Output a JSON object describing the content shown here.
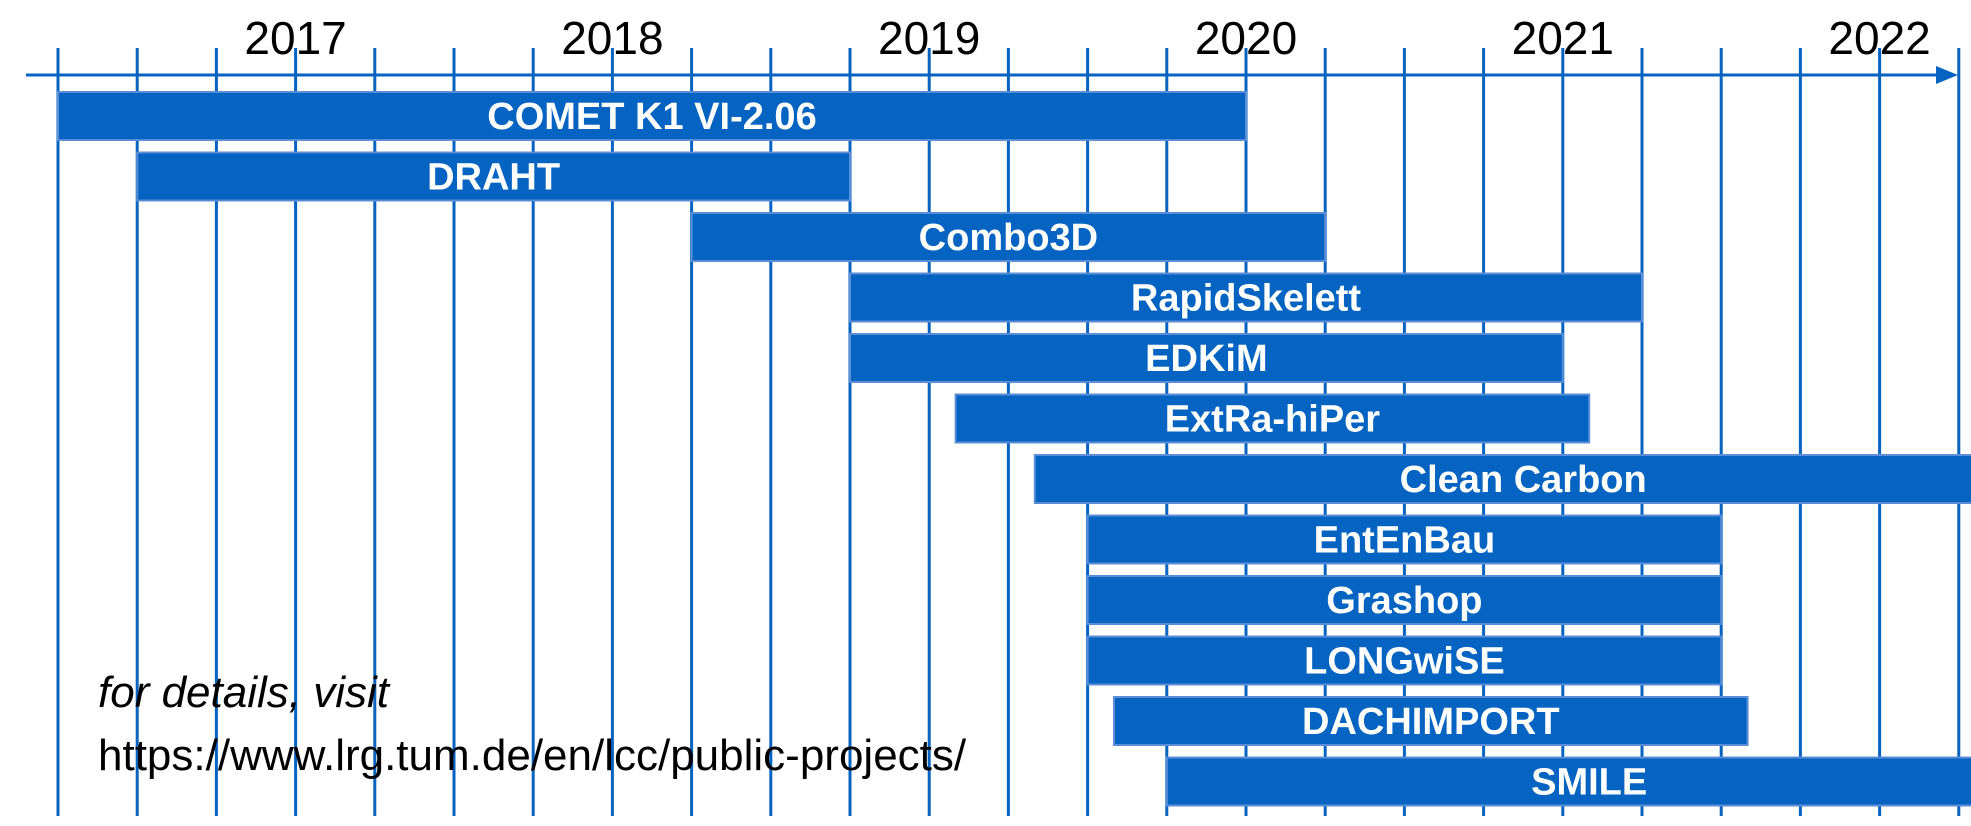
{
  "chart_data": {
    "type": "bar",
    "orientation": "horizontal-timeline",
    "axis": {
      "unit": "quarter",
      "year_labels": [
        "2017",
        "2018",
        "2019",
        "2020",
        "2021",
        "2022"
      ],
      "start": "2016-10",
      "end": "2023-01",
      "grid": true
    },
    "colors": {
      "bar": "#0563C1",
      "bar_edge": "#5B8ED6",
      "axis": "#0563C1"
    },
    "bars": [
      {
        "label": "COMET K1 VI-2.06",
        "start": "2016-10",
        "end": "2020-07"
      },
      {
        "label": "DRAHT",
        "start": "2017-01",
        "end": "2019-04"
      },
      {
        "label": "Combo3D",
        "start": "2018-10",
        "end": "2020-10"
      },
      {
        "label": "RapidSkelett",
        "start": "2019-04",
        "end": "2021-10"
      },
      {
        "label": "EDKiM",
        "start": "2019-04",
        "end": "2021-07"
      },
      {
        "label": "ExtRa-hiPer",
        "start": "2019-08",
        "end": "2021-08"
      },
      {
        "label": "Clean Carbon",
        "start": "2019-11",
        "end": "2022-12"
      },
      {
        "label": "EntEnBau",
        "start": "2020-01",
        "end": "2022-01"
      },
      {
        "label": "Grashop",
        "start": "2020-01",
        "end": "2022-01"
      },
      {
        "label": "LONGwiSE",
        "start": "2020-01",
        "end": "2022-01"
      },
      {
        "label": "DACHIMPORT",
        "start": "2020-02",
        "end": "2022-02"
      },
      {
        "label": "SMILE",
        "start": "2020-04",
        "end": "2022-12"
      }
    ]
  },
  "note": {
    "line1": "for details, visit",
    "line2": "https://www.lrg.tum.de/en/lcc/public-projects/"
  }
}
